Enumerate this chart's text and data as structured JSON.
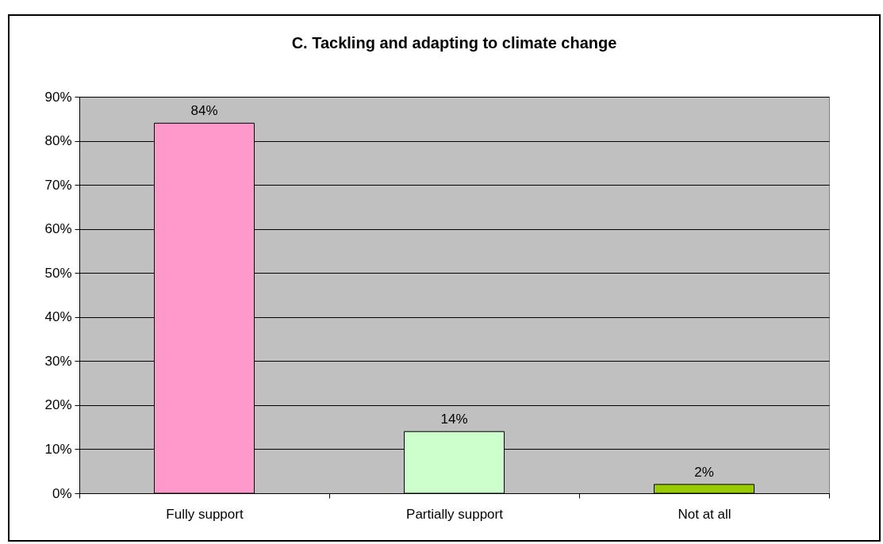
{
  "chart_data": {
    "type": "bar",
    "title": "C. Tackling and adapting to climate change",
    "categories": [
      "Fully support",
      "Partially support",
      "Not at all"
    ],
    "values": [
      84,
      14,
      2
    ],
    "colors": [
      "#ff99cc",
      "#ccffcc",
      "#99cc00"
    ],
    "value_labels": [
      "84%",
      "14%",
      "2%"
    ],
    "ylim": [
      0,
      90
    ],
    "yticks": [
      {
        "value": 0,
        "label": "0%"
      },
      {
        "value": 10,
        "label": "10%"
      },
      {
        "value": 20,
        "label": "20%"
      },
      {
        "value": 30,
        "label": "30%"
      },
      {
        "value": 40,
        "label": "40%"
      },
      {
        "value": 50,
        "label": "50%"
      },
      {
        "value": 60,
        "label": "60%"
      },
      {
        "value": 70,
        "label": "70%"
      },
      {
        "value": 80,
        "label": "80%"
      },
      {
        "value": 90,
        "label": "90%"
      }
    ],
    "grid": "y"
  }
}
